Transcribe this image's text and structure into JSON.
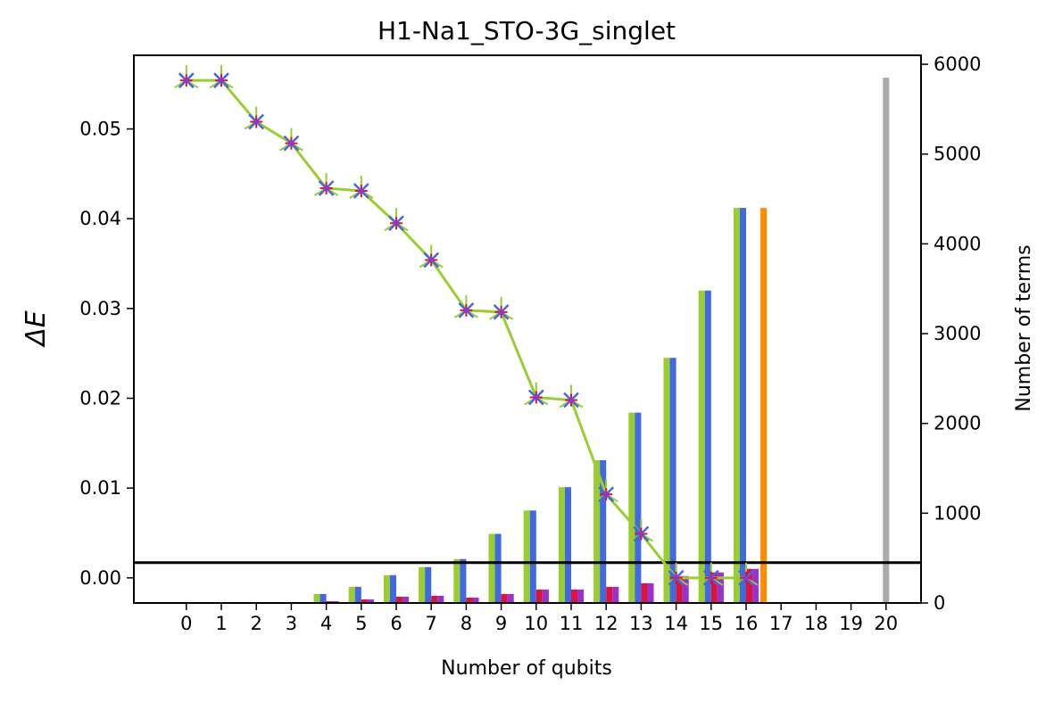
{
  "chart_data": {
    "type": "bar",
    "title": "H1-Na1_STO-3G_singlet",
    "xlabel": "Number of qubits",
    "ylabel_left": "ΔE",
    "ylabel_right": "Number of terms",
    "x_ticks": [
      0,
      1,
      2,
      3,
      4,
      5,
      6,
      7,
      8,
      9,
      10,
      11,
      12,
      13,
      14,
      15,
      16,
      17,
      18,
      19,
      20
    ],
    "y_left_ticks": [
      "0.00",
      "0.01",
      "0.02",
      "0.03",
      "0.04",
      "0.05"
    ],
    "y_left_tick_values": [
      0.0,
      0.01,
      0.02,
      0.03,
      0.04,
      0.05
    ],
    "y_right_ticks": [
      "0",
      "1000",
      "2000",
      "3000",
      "4000",
      "5000",
      "6000"
    ],
    "y_right_tick_values": [
      0,
      1000,
      2000,
      3000,
      4000,
      5000,
      6000
    ],
    "ylim_left": [
      -0.0028,
      0.0582
    ],
    "ylim_right": [
      0,
      6100
    ],
    "xlim": [
      -1.5,
      21.0
    ],
    "horizontal_line_terms": 450,
    "energy_series": {
      "x": [
        0,
        1,
        2,
        3,
        4,
        5,
        6,
        7,
        8,
        9,
        10,
        11,
        12,
        13,
        14,
        15,
        16
      ],
      "values": [
        0.0554,
        0.0554,
        0.0508,
        0.0484,
        0.0434,
        0.0431,
        0.0395,
        0.0354,
        0.0298,
        0.0296,
        0.0201,
        0.0198,
        0.0093,
        0.0049,
        0.0,
        0.0,
        0.0
      ],
      "line_color": "#9acd32",
      "marker_colors": [
        "#9acd32",
        "#4169e1",
        "#dc143c",
        "#9932cc"
      ]
    },
    "term_series": [
      {
        "color": "#9acd32",
        "x": [
          3,
          4,
          5,
          6,
          7,
          8,
          9,
          10,
          11,
          12,
          13,
          14,
          15,
          16
        ],
        "values": [
          10,
          100,
          180,
          310,
          400,
          490,
          770,
          1030,
          1290,
          1590,
          2120,
          2730,
          3480,
          4400
        ]
      },
      {
        "color": "#4169e1",
        "x": [
          3,
          4,
          5,
          6,
          7,
          8,
          9,
          10,
          11,
          12,
          13,
          14,
          15,
          16
        ],
        "values": [
          10,
          100,
          180,
          310,
          400,
          490,
          770,
          1030,
          1290,
          1590,
          2120,
          2730,
          3480,
          4400
        ]
      },
      {
        "color": "#dc143c",
        "x": [
          4,
          5,
          6,
          7,
          8,
          9,
          10,
          11,
          12,
          13,
          14,
          15,
          16
        ],
        "values": [
          20,
          40,
          70,
          80,
          60,
          100,
          150,
          150,
          180,
          220,
          300,
          340,
          380
        ]
      },
      {
        "color": "#9932cc",
        "x": [
          4,
          5,
          6,
          7,
          8,
          9,
          10,
          11,
          12,
          13,
          14,
          15,
          16
        ],
        "values": [
          20,
          40,
          70,
          80,
          60,
          100,
          150,
          150,
          180,
          220,
          300,
          340,
          380
        ]
      }
    ],
    "reference_bars": [
      {
        "x": 16.5,
        "value": 4400,
        "color": "#ff8c00"
      },
      {
        "x": 20,
        "value": 5850,
        "color": "#aaaaaa"
      }
    ]
  }
}
